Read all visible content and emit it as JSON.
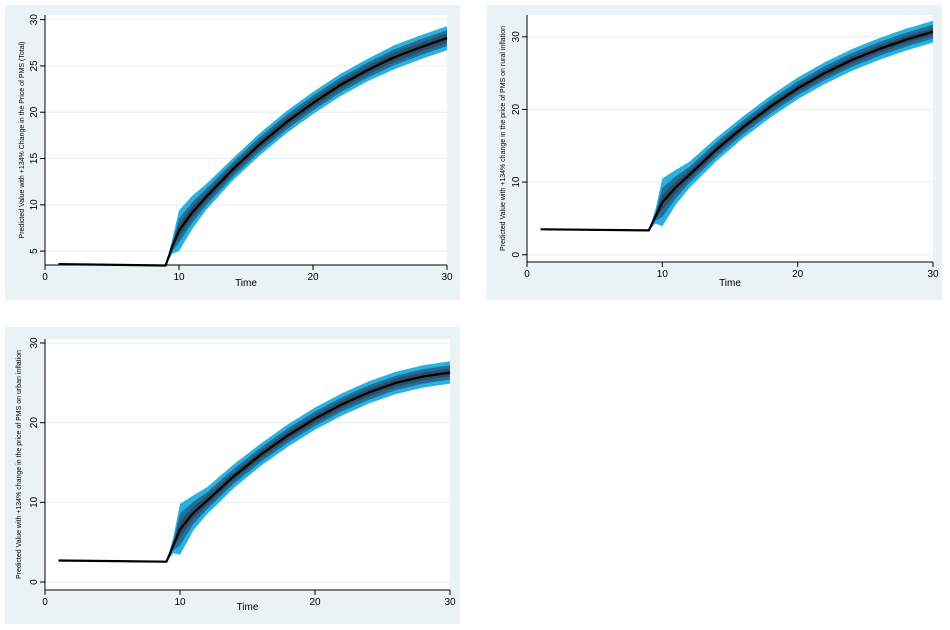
{
  "colors": {
    "panel_bg": "#eaf2f3",
    "plot_bg": "#ffffff",
    "grid": "#e6eef0",
    "outer_band": "#29b1e0",
    "middle_band": "#1f6f9a",
    "inner_band": "#2c4f66",
    "line": "#000000"
  },
  "chart_data": [
    {
      "type": "line",
      "title": "",
      "xlabel": "Time",
      "ylabel": "Predicted Value with +134% Change in the Price of PMS (Total)",
      "xlim": [
        0,
        30
      ],
      "ylim": [
        3.5,
        30.5
      ],
      "xticks": [
        0,
        10,
        20,
        30
      ],
      "yticks": [
        5,
        10,
        15,
        20,
        25,
        30
      ],
      "grid": true,
      "x": [
        1,
        9,
        9.5,
        10,
        11,
        12,
        14,
        16,
        18,
        20,
        22,
        24,
        26,
        28,
        30
      ],
      "y": [
        3.6,
        3.45,
        5.5,
        7.2,
        9.2,
        10.8,
        13.8,
        16.5,
        18.9,
        21.0,
        22.9,
        24.5,
        25.9,
        27.0,
        28.0
      ],
      "band_outer": [
        0,
        0,
        0.8,
        2.2,
        1.8,
        1.4,
        1.2,
        1.2,
        1.2,
        1.2,
        1.2,
        1.2,
        1.3,
        1.3,
        1.3
      ],
      "band_middle": [
        0,
        0,
        0.5,
        1.3,
        1.1,
        0.9,
        0.8,
        0.8,
        0.8,
        0.8,
        0.8,
        0.8,
        0.85,
        0.85,
        0.85
      ],
      "band_inner": [
        0,
        0,
        0.3,
        0.7,
        0.6,
        0.5,
        0.45,
        0.45,
        0.45,
        0.45,
        0.45,
        0.45,
        0.5,
        0.5,
        0.5
      ]
    },
    {
      "type": "line",
      "title": "",
      "xlabel": "Time",
      "ylabel": "Predicted Value with +134% change in the price of PMS on rural inflation",
      "xlim": [
        0,
        30
      ],
      "ylim": [
        -1,
        33
      ],
      "xticks": [
        0,
        10,
        20,
        30
      ],
      "yticks": [
        0,
        10,
        20,
        30
      ],
      "grid": true,
      "x": [
        1,
        9,
        9.5,
        10,
        11,
        12,
        14,
        16,
        18,
        20,
        22,
        24,
        26,
        28,
        30
      ],
      "y": [
        3.5,
        3.35,
        5.3,
        7.2,
        9.3,
        11.0,
        14.5,
        17.6,
        20.4,
        22.9,
        25.0,
        26.8,
        28.3,
        29.6,
        30.7
      ],
      "band_outer": [
        0,
        0,
        1.0,
        3.3,
        2.4,
        1.8,
        1.6,
        1.5,
        1.5,
        1.5,
        1.5,
        1.5,
        1.5,
        1.5,
        1.5
      ],
      "band_middle": [
        0,
        0,
        0.6,
        2.0,
        1.5,
        1.1,
        1.0,
        0.95,
        0.95,
        0.95,
        0.95,
        0.95,
        0.95,
        0.95,
        0.95
      ],
      "band_inner": [
        0,
        0,
        0.35,
        1.0,
        0.8,
        0.6,
        0.55,
        0.5,
        0.5,
        0.5,
        0.5,
        0.5,
        0.5,
        0.5,
        0.5
      ]
    },
    {
      "type": "line",
      "title": "",
      "xlabel": "Time",
      "ylabel": "Predicted Value with +134% change in the price of PMS on urban inflation",
      "xlim": [
        0,
        30
      ],
      "ylim": [
        -1,
        30.5
      ],
      "xticks": [
        0,
        10,
        20,
        30
      ],
      "yticks": [
        0,
        10,
        20,
        30
      ],
      "grid": true,
      "x": [
        1,
        9,
        9.5,
        10,
        11,
        12,
        14,
        16,
        18,
        20,
        22,
        24,
        26,
        28,
        30
      ],
      "y": [
        2.7,
        2.55,
        4.6,
        6.6,
        8.7,
        10.2,
        13.3,
        16.0,
        18.4,
        20.5,
        22.3,
        23.8,
        25.0,
        25.8,
        26.3
      ],
      "band_outer": [
        0,
        0,
        1.0,
        3.2,
        2.2,
        1.7,
        1.5,
        1.4,
        1.4,
        1.4,
        1.4,
        1.4,
        1.4,
        1.4,
        1.4
      ],
      "band_middle": [
        0,
        0,
        0.6,
        2.0,
        1.4,
        1.05,
        0.95,
        0.9,
        0.9,
        0.9,
        0.9,
        0.9,
        0.9,
        0.9,
        0.9
      ],
      "band_inner": [
        0,
        0,
        0.35,
        1.0,
        0.75,
        0.6,
        0.5,
        0.5,
        0.5,
        0.5,
        0.5,
        0.5,
        0.5,
        0.5,
        0.5
      ]
    }
  ]
}
